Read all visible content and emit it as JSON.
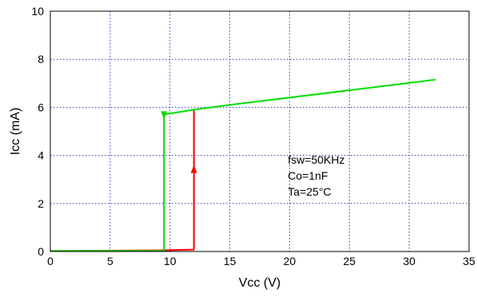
{
  "chart_data": {
    "type": "line",
    "xlabel": "Vcc (V)",
    "ylabel": "Icc (mA)",
    "xlim": [
      0,
      35
    ],
    "ylim": [
      0,
      10
    ],
    "xticks": [
      "0",
      "5",
      "10",
      "15",
      "20",
      "25",
      "30",
      "35"
    ],
    "yticks": [
      "0",
      "2",
      "4",
      "6",
      "8",
      "10"
    ],
    "grid": true,
    "annotations": [
      "fsw=50KHz",
      "Co=1nF",
      "Ta=25°C"
    ],
    "series": [
      {
        "color": "#ff0000",
        "direction": "rising",
        "x": [
          0,
          9.5,
          12.0,
          12.0,
          12.0
        ],
        "y": [
          0.02,
          0.05,
          0.08,
          3.4,
          5.9
        ]
      },
      {
        "color": "#00dd00",
        "direction": "falling",
        "x": [
          32.2,
          15.0,
          12.0,
          9.5,
          9.5,
          9.5,
          0
        ],
        "y": [
          7.15,
          6.1,
          5.9,
          5.7,
          2.9,
          0.03,
          0.02
        ]
      }
    ]
  }
}
